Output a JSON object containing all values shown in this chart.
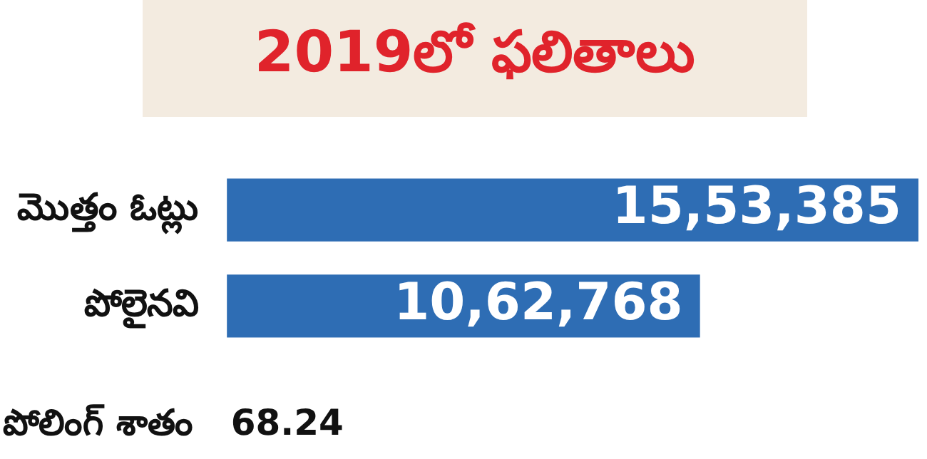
{
  "chart_data": {
    "type": "bar",
    "orientation": "horizontal",
    "title": "2019లో ఫలితాలు",
    "categories": [
      "మొత్తం ఓట్లు",
      "పోలైనవి"
    ],
    "values": [
      1553385,
      1062768
    ],
    "value_labels": [
      "15,53,385",
      "10,62,768"
    ],
    "color": "#2e6db4",
    "tick_labels": "y",
    "annotations": [
      "పోలింగ్ శాతం   68.24"
    ]
  }
}
